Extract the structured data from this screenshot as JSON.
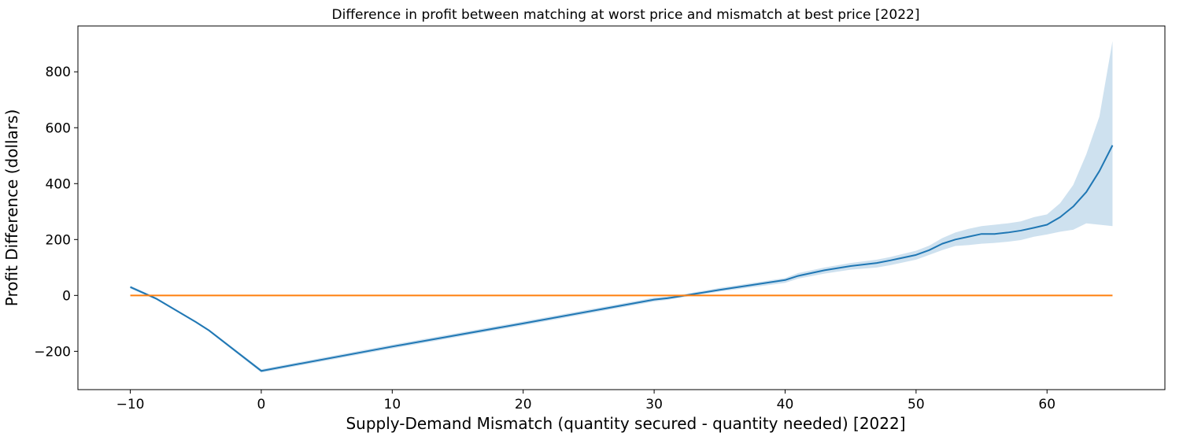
{
  "chart_data": {
    "type": "line",
    "title": "Difference in profit between matching at worst price and mismatch at best price [2022]",
    "xlabel": "Supply-Demand Mismatch (quantity secured - quantity needed) [2022]",
    "ylabel": "Profit Difference (dollars)",
    "xlim": [
      -14,
      69
    ],
    "ylim": [
      -337,
      964
    ],
    "xticks": [
      -10,
      0,
      10,
      20,
      30,
      40,
      50,
      60
    ],
    "yticks": [
      -200,
      0,
      200,
      400,
      600,
      800
    ],
    "xtick_labels": [
      "−10",
      "0",
      "10",
      "20",
      "30",
      "40",
      "50",
      "60"
    ],
    "ytick_labels": [
      "−200",
      "0",
      "200",
      "400",
      "600",
      "800"
    ],
    "grid": false,
    "series": [
      {
        "color": "#1f77b4",
        "band_color": "#1f77b4",
        "x": [
          -10,
          -8,
          -5,
          -4,
          0,
          10,
          20,
          30,
          31,
          32,
          35,
          40,
          41,
          43,
          45,
          47,
          48,
          50,
          51,
          52,
          53,
          54,
          55,
          56,
          57,
          58,
          59,
          60,
          61,
          62,
          63,
          64,
          65
        ],
        "y": [
          30,
          -12,
          -95,
          -125,
          -270,
          -183,
          -100,
          -15,
          -10,
          -3,
          20,
          55,
          70,
          90,
          105,
          116,
          125,
          145,
          162,
          185,
          200,
          210,
          220,
          220,
          225,
          232,
          242,
          253,
          280,
          318,
          370,
          445,
          537
        ],
        "lower": [
          25,
          -16,
          -99,
          -129,
          -276,
          -190,
          -107,
          -22,
          -16,
          -8,
          14,
          45,
          60,
          78,
          92,
          100,
          108,
          128,
          145,
          162,
          177,
          180,
          185,
          188,
          192,
          198,
          210,
          218,
          228,
          235,
          258,
          253,
          248
        ],
        "upper": [
          35,
          -8,
          -91,
          -121,
          -264,
          -176,
          -93,
          -8,
          -4,
          2,
          27,
          62,
          80,
          100,
          116,
          128,
          137,
          160,
          178,
          205,
          225,
          238,
          248,
          253,
          258,
          265,
          280,
          290,
          330,
          395,
          505,
          640,
          910
        ]
      },
      {
        "color": "#ff7f0e",
        "x": [
          -10,
          65
        ],
        "y": [
          0,
          0
        ]
      }
    ]
  }
}
